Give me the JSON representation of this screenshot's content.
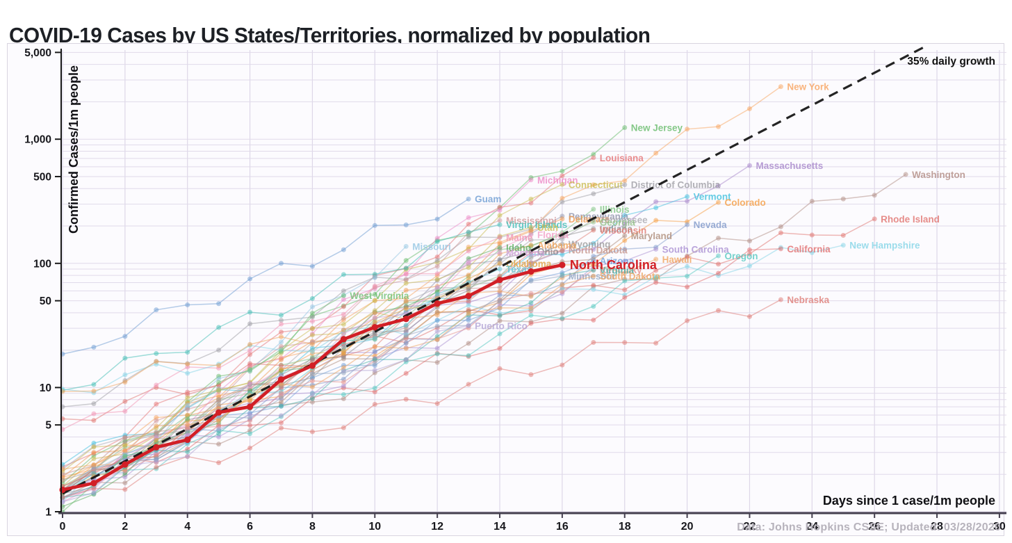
{
  "page": {
    "title": "COVID-19 Cases by US States/Territories, normalized by population",
    "footer": "Data: Johns Hopkins CSSE; Updated: 03/28/2020"
  },
  "chart_data": {
    "type": "line",
    "title": "COVID-19 Cases by US States/Territories, normalized by population",
    "xlabel": "Days since 1 case/1m people",
    "ylabel": "Confirmed Cases/1m people",
    "xlim": [
      0,
      30
    ],
    "ylim": [
      1,
      5000
    ],
    "yscale": "log",
    "grid": true,
    "x_ticks": [
      0,
      2,
      4,
      6,
      8,
      10,
      12,
      14,
      16,
      18,
      20,
      22,
      24,
      26,
      28,
      30
    ],
    "y_ticks": [
      {
        "label": "5,000",
        "value": 5000
      },
      {
        "label": "1,000",
        "value": 1000
      },
      {
        "label": "500",
        "value": 500
      },
      {
        "label": "100",
        "value": 100
      },
      {
        "label": "50",
        "value": 50
      },
      {
        "label": "10",
        "value": 10
      },
      {
        "label": "5",
        "value": 5
      },
      {
        "label": "1",
        "value": 1
      }
    ],
    "reference_line": {
      "label": "35% daily growth",
      "daily_growth_pct": 35,
      "start_value": 1.4,
      "end_day": 27.7,
      "color": "#111111",
      "style": "dashed"
    },
    "highlight": {
      "name": "North Carolina",
      "color": "#d21f26",
      "days": [
        0,
        1,
        2,
        3,
        4,
        5,
        6,
        7,
        8,
        9,
        10,
        11,
        12,
        13,
        14,
        15,
        16
      ],
      "values": [
        1.5,
        1.7,
        2.4,
        3.3,
        3.8,
        6.3,
        7.0,
        11.6,
        15,
        24.5,
        30.6,
        35.7,
        47.5,
        54.6,
        73.6,
        86,
        97
      ]
    },
    "series": [
      {
        "name": "New York",
        "color": "#f7a35c",
        "start": 1.9,
        "end_day": 23,
        "end_value": 2650,
        "seed": 1
      },
      {
        "name": "New Jersey",
        "color": "#66bb6a",
        "start": 1.7,
        "end_day": 18,
        "end_value": 1240,
        "seed": 2
      },
      {
        "name": "Louisiana",
        "color": "#e57373",
        "start": 2.3,
        "end_day": 17,
        "end_value": 710,
        "seed": 3
      },
      {
        "name": "Massachusetts",
        "color": "#a584c9",
        "start": 1.4,
        "end_day": 22,
        "end_value": 613,
        "seed": 4
      },
      {
        "name": "Washington",
        "color": "#b08b82",
        "start": 1.3,
        "end_day": 27,
        "end_value": 520,
        "seed": 5
      },
      {
        "name": "Michigan",
        "color": "#ec87c5",
        "start": 1.2,
        "end_day": 15,
        "end_value": 470,
        "seed": 6
      },
      {
        "name": "Connecticut",
        "color": "#c9bb4f",
        "start": 1.6,
        "end_day": 16,
        "end_value": 432,
        "seed": 7
      },
      {
        "name": "District of Columbia",
        "color": "#9e9ea4",
        "start": 7.0,
        "end_day": 18,
        "end_value": 430,
        "seed": 8
      },
      {
        "name": "Vermont",
        "color": "#3fc0dd",
        "start": 2.4,
        "end_day": 20,
        "end_value": 345,
        "seed": 9
      },
      {
        "name": "Guam",
        "color": "#6b9bd2",
        "start": 18.6,
        "end_day": 13,
        "end_value": 330,
        "seed": 10
      },
      {
        "name": "Colorado",
        "color": "#f59d42",
        "start": 1.8,
        "end_day": 21,
        "end_value": 310,
        "seed": 11
      },
      {
        "name": "Illinois",
        "color": "#7cc47f",
        "start": 1.5,
        "end_day": 17,
        "end_value": 273,
        "seed": 12
      },
      {
        "name": "Pennsylvania",
        "color": "#8f93ab",
        "start": 1.3,
        "end_day": 16,
        "end_value": 240,
        "seed": 13
      },
      {
        "name": "Delaware",
        "color": "#ef9a4f",
        "start": 1.9,
        "end_day": 16,
        "end_value": 228,
        "seed": 14
      },
      {
        "name": "Rhode Island",
        "color": "#e0716c",
        "start": 5.6,
        "end_day": 26,
        "end_value": 228,
        "seed": 15
      },
      {
        "name": "Tennessee",
        "color": "#a9a9af",
        "start": 2.2,
        "end_day": 17,
        "end_value": 225,
        "seed": 16
      },
      {
        "name": "Mississippi",
        "color": "#cf9595",
        "start": 1.6,
        "end_day": 14,
        "end_value": 222,
        "seed": 17
      },
      {
        "name": "Georgia",
        "color": "#8fbe83",
        "start": 1.6,
        "end_day": 17,
        "end_value": 215,
        "seed": 18
      },
      {
        "name": "Nevada",
        "color": "#7e99c9",
        "start": 1.5,
        "end_day": 20,
        "end_value": 205,
        "seed": 19
      },
      {
        "name": "Virgin Islands",
        "color": "#3fbdb4",
        "start": 9.5,
        "end_day": 14,
        "end_value": 205,
        "seed": 20
      },
      {
        "name": "Utah",
        "color": "#c9b94f",
        "start": 2.1,
        "end_day": 15,
        "end_value": 195,
        "seed": 21
      },
      {
        "name": "Indiana",
        "color": "#8f8f8f",
        "start": 1.4,
        "end_day": 17,
        "end_value": 190,
        "seed": 22
      },
      {
        "name": "Wisconsin",
        "color": "#e07b72",
        "start": 1.4,
        "end_day": 17,
        "end_value": 185,
        "seed": 23
      },
      {
        "name": "Florida",
        "color": "#f29ec4",
        "start": 1.3,
        "end_day": 15,
        "end_value": 170,
        "seed": 24
      },
      {
        "name": "Maryland",
        "color": "#ab8a75",
        "start": 1.4,
        "end_day": 18,
        "end_value": 167,
        "seed": 25
      },
      {
        "name": "Maine",
        "color": "#f191b1",
        "start": 4.6,
        "end_day": 14,
        "end_value": 162,
        "seed": 26
      },
      {
        "name": "Wyoming",
        "color": "#9b9b9b",
        "start": 1.8,
        "end_day": 16,
        "end_value": 143,
        "seed": 27
      },
      {
        "name": "Alabama",
        "color": "#efa050",
        "start": 1.5,
        "end_day": 15,
        "end_value": 140,
        "seed": 28
      },
      {
        "name": "New Hampshire",
        "color": "#82d4e6",
        "start": 9.7,
        "end_day": 25,
        "end_value": 140,
        "seed": 29
      },
      {
        "name": "Missouri",
        "color": "#92c5e2",
        "start": 1.2,
        "end_day": 11,
        "end_value": 137,
        "seed": 30
      },
      {
        "name": "Idaho",
        "color": "#5aaa5e",
        "start": 1.1,
        "end_day": 14,
        "end_value": 134,
        "seed": 31
      },
      {
        "name": "California",
        "color": "#e06c6c",
        "start": 1.6,
        "end_day": 23,
        "end_value": 131,
        "seed": 32
      },
      {
        "name": "South Carolina",
        "color": "#a98fd2",
        "start": 1.4,
        "end_day": 19,
        "end_value": 130,
        "seed": 33
      },
      {
        "name": "North Dakota",
        "color": "#c49288",
        "start": 2.0,
        "end_day": 16,
        "end_value": 128,
        "seed": 34
      },
      {
        "name": "Ohio",
        "color": "#8a8a90",
        "start": 1.4,
        "end_day": 15,
        "end_value": 125,
        "seed": 35
      },
      {
        "name": "Montana",
        "color": "#cf9fd8",
        "start": 1.3,
        "end_day": 14,
        "end_value": 122,
        "seed": 36
      },
      {
        "name": "Oregon",
        "color": "#54c8c0",
        "start": 1.4,
        "end_day": 21,
        "end_value": 115,
        "seed": 37
      },
      {
        "name": "Hawaii",
        "color": "#f0a45c",
        "start": 9.3,
        "end_day": 19,
        "end_value": 108,
        "seed": 38
      },
      {
        "name": "Arizona",
        "color": "#6f9fd8",
        "start": 1.4,
        "end_day": 17,
        "end_value": 105,
        "seed": 39
      },
      {
        "name": "Oklahoma",
        "color": "#e2a23e",
        "start": 1.4,
        "end_day": 14,
        "end_value": 100,
        "seed": 40
      },
      {
        "name": "Texas",
        "color": "#62c4cf",
        "start": 1.3,
        "end_day": 14,
        "end_value": 90,
        "seed": 41
      },
      {
        "name": "Kentucky",
        "color": "#e58f8a",
        "start": 1.5,
        "end_day": 17,
        "end_value": 89,
        "seed": 42
      },
      {
        "name": "Virginia",
        "color": "#47b3a9",
        "start": 1.3,
        "end_day": 17,
        "end_value": 88,
        "seed": 43
      },
      {
        "name": "Minnesota",
        "color": "#92a6c0",
        "start": 1.5,
        "end_day": 16,
        "end_value": 79,
        "seed": 44
      },
      {
        "name": "South Dakota",
        "color": "#eda45e",
        "start": 2.2,
        "end_day": 17,
        "end_value": 79,
        "seed": 45
      },
      {
        "name": "West Virginia",
        "color": "#6fbf73",
        "start": 1.0,
        "end_day": 9,
        "end_value": 55,
        "seed": 46
      },
      {
        "name": "Nebraska",
        "color": "#dd7a74",
        "start": 1.3,
        "end_day": 23,
        "end_value": 51,
        "seed": 47
      },
      {
        "name": "Puerto Rico",
        "color": "#b2a4d4",
        "start": 1.2,
        "end_day": 13,
        "end_value": 31.5,
        "seed": 48
      }
    ]
  }
}
